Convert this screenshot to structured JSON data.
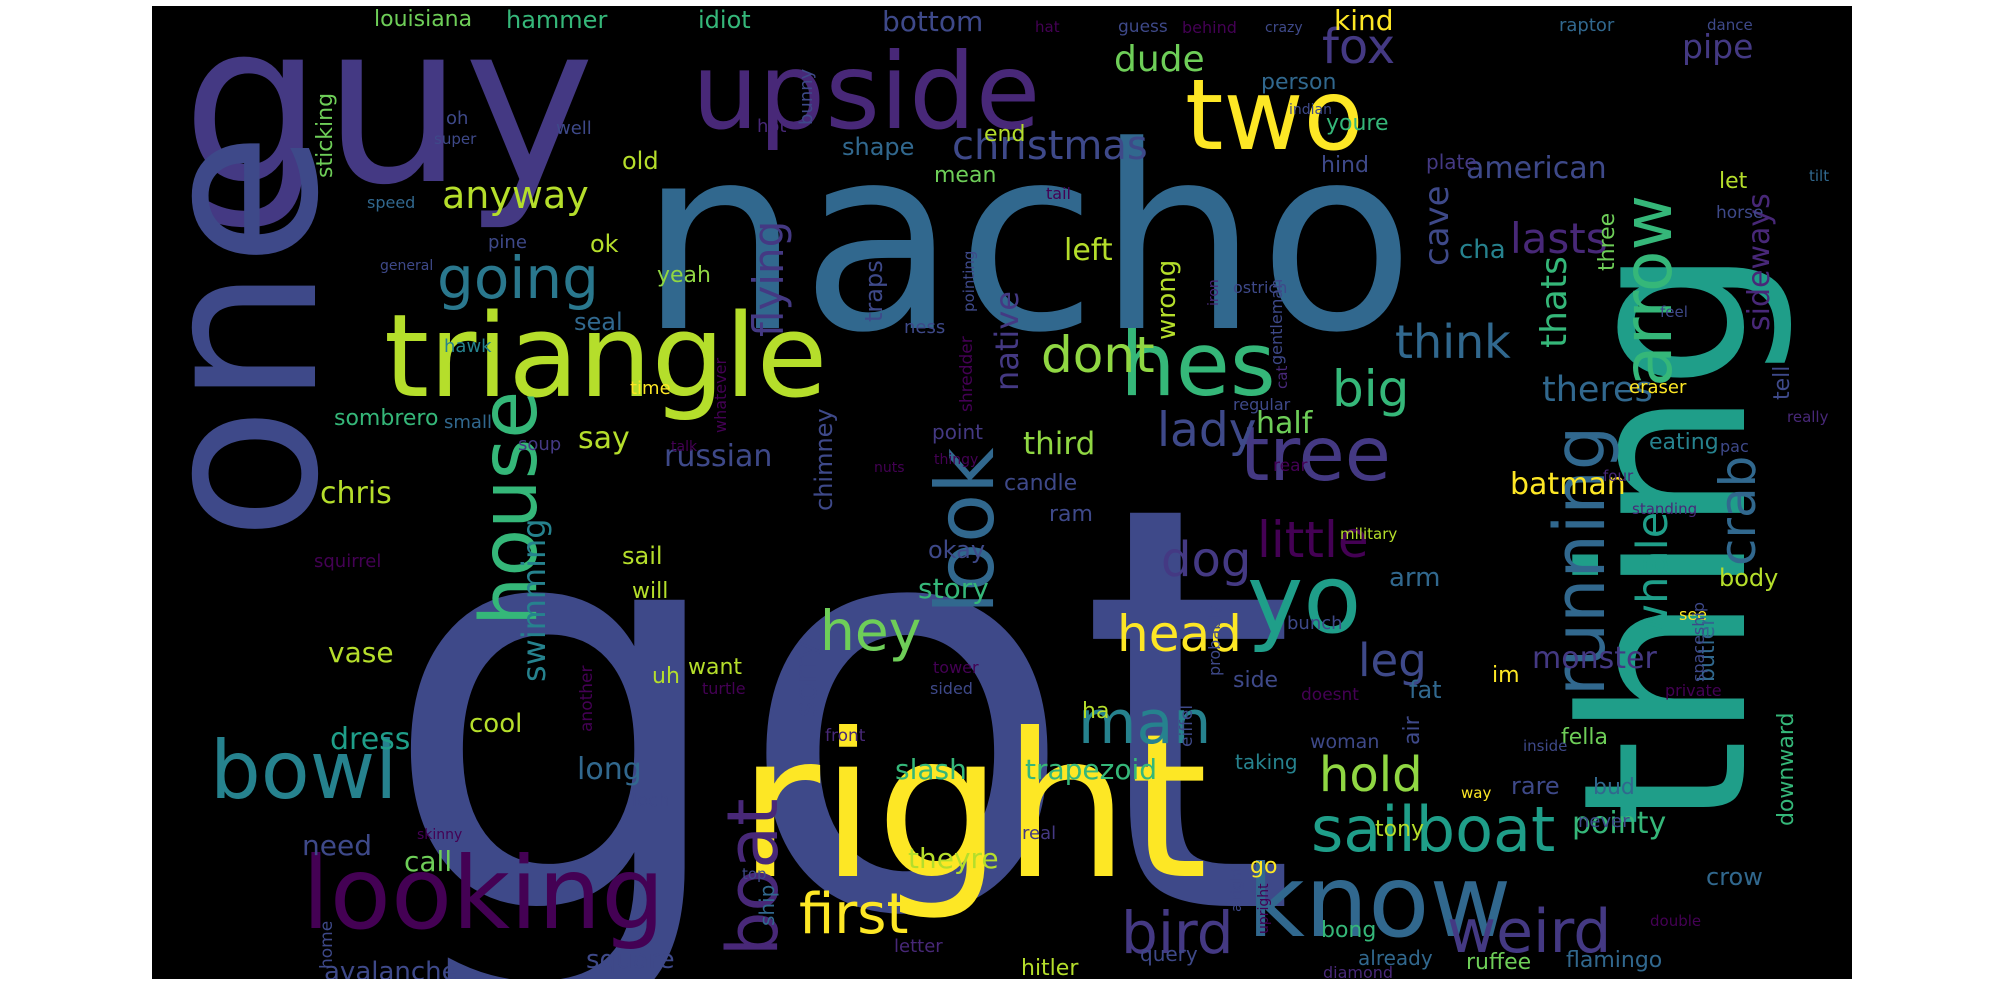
{
  "palette": {
    "background": "#000000",
    "page": "#ffffff",
    "yellow": "#fde725",
    "lime": "#b5de2b",
    "lightgreen": "#6ece58",
    "green": "#35b779",
    "teal": "#1f9e89",
    "cyan": "#26828e",
    "steel": "#31688e",
    "blue": "#3e4989",
    "indigo": "#482878",
    "purple": "#440154"
  },
  "words": [
    {
      "text": "got",
      "color": "#3e4989"
    },
    {
      "text": "thing",
      "color": "#1f9e89"
    },
    {
      "text": "nacho",
      "color": "#31688e"
    },
    {
      "text": "guy",
      "color": "#443983"
    },
    {
      "text": "one",
      "color": "#3e4989"
    },
    {
      "text": "right",
      "color": "#fde725"
    },
    {
      "text": "triangle",
      "color": "#b5de2b"
    },
    {
      "text": "upside",
      "color": "#482878"
    },
    {
      "text": "two",
      "color": "#fde725"
    },
    {
      "text": "running",
      "color": "#31688e"
    },
    {
      "text": "know",
      "color": "#31688e"
    },
    {
      "text": "looking",
      "color": "#440154"
    },
    {
      "text": "yo",
      "color": "#1f9e89"
    },
    {
      "text": "hes",
      "color": "#35b779"
    },
    {
      "text": "house",
      "color": "#35b779"
    },
    {
      "text": "bowl",
      "color": "#26828e"
    },
    {
      "text": "tree",
      "color": "#443983"
    },
    {
      "text": "look",
      "color": "#31688e"
    },
    {
      "text": "arrow",
      "color": "#35b779"
    },
    {
      "text": "sailboat",
      "color": "#1f9e89"
    },
    {
      "text": "boat",
      "color": "#482878"
    },
    {
      "text": "going",
      "color": "#2a788e"
    },
    {
      "text": "man",
      "color": "#26828e"
    },
    {
      "text": "first",
      "color": "#fde725"
    },
    {
      "text": "bird",
      "color": "#443983"
    },
    {
      "text": "weird",
      "color": "#443983"
    },
    {
      "text": "hey",
      "color": "#6ece58"
    },
    {
      "text": "head",
      "color": "#fde725"
    },
    {
      "text": "dont",
      "color": "#90d743"
    },
    {
      "text": "little",
      "color": "#440154"
    },
    {
      "text": "crab",
      "color": "#31688e"
    },
    {
      "text": "whale",
      "color": "#1f9e89"
    },
    {
      "text": "dog",
      "color": "#443983"
    },
    {
      "text": "lady",
      "color": "#3e4989"
    },
    {
      "text": "big",
      "color": "#35b779"
    },
    {
      "text": "think",
      "color": "#31688e"
    },
    {
      "text": "hold",
      "color": "#90d743"
    },
    {
      "text": "fox",
      "color": "#443983"
    },
    {
      "text": "christmas",
      "color": "#3e4989"
    },
    {
      "text": "anyway",
      "color": "#b5de2b"
    },
    {
      "text": "flying",
      "color": "#443983"
    },
    {
      "text": "swimming",
      "color": "#26828e"
    },
    {
      "text": "lasts",
      "color": "#482878"
    },
    {
      "text": "leg",
      "color": "#3e4989"
    },
    {
      "text": "dude",
      "color": "#6ece58"
    },
    {
      "text": "native",
      "color": "#443983"
    },
    {
      "text": "cave",
      "color": "#3e4989"
    },
    {
      "text": "thats",
      "color": "#35b779"
    },
    {
      "text": "sideways",
      "color": "#482878"
    },
    {
      "text": "pipe",
      "color": "#443983"
    },
    {
      "text": "theres",
      "color": "#31688e"
    },
    {
      "text": "pointy",
      "color": "#35b779"
    },
    {
      "text": "chris",
      "color": "#b5de2b"
    },
    {
      "text": "say",
      "color": "#b5de2b"
    },
    {
      "text": "russian",
      "color": "#3e4989"
    },
    {
      "text": "third",
      "color": "#90d743"
    },
    {
      "text": "left",
      "color": "#b5de2b"
    },
    {
      "text": "wrong",
      "color": "#b5de2b"
    },
    {
      "text": "half",
      "color": "#6ece58"
    },
    {
      "text": "american",
      "color": "#3e4989"
    },
    {
      "text": "batman",
      "color": "#fde725"
    },
    {
      "text": "monster",
      "color": "#443983"
    },
    {
      "text": "long",
      "color": "#31688e"
    },
    {
      "text": "dress",
      "color": "#1f9e89"
    },
    {
      "text": "sorry",
      "color": "#3e4989"
    },
    {
      "text": "story",
      "color": "#35b779"
    },
    {
      "text": "slash",
      "color": "#35b779"
    },
    {
      "text": "trapezoid",
      "color": "#35b779"
    },
    {
      "text": "theyre",
      "color": "#b5de2b"
    },
    {
      "text": "avalanche",
      "color": "#3e4989"
    },
    {
      "text": "call",
      "color": "#6ece58"
    },
    {
      "text": "need",
      "color": "#3e4989"
    },
    {
      "text": "vase",
      "color": "#b5de2b"
    },
    {
      "text": "cool",
      "color": "#b5de2b"
    },
    {
      "text": "square",
      "color": "#3e4989"
    },
    {
      "text": "bottom",
      "color": "#3e4989"
    },
    {
      "text": "kind",
      "color": "#fde725"
    },
    {
      "text": "hammer",
      "color": "#35b779"
    },
    {
      "text": "idiot",
      "color": "#35b779"
    },
    {
      "text": "louisiana",
      "color": "#6ece58"
    },
    {
      "text": "sticking",
      "color": "#6ece58"
    },
    {
      "text": "old",
      "color": "#b5de2b"
    },
    {
      "text": "ok",
      "color": "#b5de2b"
    },
    {
      "text": "yeah",
      "color": "#90d743"
    },
    {
      "text": "seal",
      "color": "#31688e"
    },
    {
      "text": "sombrero",
      "color": "#35b779"
    },
    {
      "text": "traps",
      "color": "#3e4989"
    },
    {
      "text": "chimney",
      "color": "#3e4989"
    },
    {
      "text": "okay",
      "color": "#3e4989"
    },
    {
      "text": "want",
      "color": "#b5de2b"
    },
    {
      "text": "uh",
      "color": "#b5de2b"
    },
    {
      "text": "ha",
      "color": "#b5de2b"
    },
    {
      "text": "sail",
      "color": "#b5de2b"
    },
    {
      "text": "will",
      "color": "#b5de2b"
    },
    {
      "text": "shape",
      "color": "#31688e"
    },
    {
      "text": "end",
      "color": "#b5de2b"
    },
    {
      "text": "mean",
      "color": "#6ece58"
    },
    {
      "text": "cha",
      "color": "#26828e"
    },
    {
      "text": "three",
      "color": "#6ece58"
    },
    {
      "text": "tell",
      "color": "#3e4989"
    },
    {
      "text": "let",
      "color": "#b5de2b"
    },
    {
      "text": "eating",
      "color": "#26828e"
    },
    {
      "text": "body",
      "color": "#b5de2b"
    },
    {
      "text": "butler",
      "color": "#31688e"
    },
    {
      "text": "arm",
      "color": "#31688e"
    },
    {
      "text": "im",
      "color": "#fde725"
    },
    {
      "text": "fat",
      "color": "#31688e"
    },
    {
      "text": "air",
      "color": "#3e4989"
    },
    {
      "text": "fella",
      "color": "#6ece58"
    },
    {
      "text": "rare",
      "color": "#3e4989"
    },
    {
      "text": "bud",
      "color": "#31688e"
    },
    {
      "text": "crow",
      "color": "#31688e"
    },
    {
      "text": "downward",
      "color": "#35b779"
    },
    {
      "text": "bong",
      "color": "#35b779"
    },
    {
      "text": "ruffee",
      "color": "#6ece58"
    },
    {
      "text": "flamingo",
      "color": "#31688e"
    },
    {
      "text": "tony",
      "color": "#b5de2b"
    },
    {
      "text": "go",
      "color": "#fde725"
    },
    {
      "text": "candle",
      "color": "#3e4989"
    },
    {
      "text": "ram",
      "color": "#3e4989"
    },
    {
      "text": "person",
      "color": "#31688e"
    },
    {
      "text": "youre",
      "color": "#35b779"
    },
    {
      "text": "hind",
      "color": "#3e4989"
    },
    {
      "text": "plate",
      "color": "#443983"
    },
    {
      "text": "hitler",
      "color": "#b5de2b"
    },
    {
      "text": "query",
      "color": "#3e4989"
    },
    {
      "text": "already",
      "color": "#31688e"
    },
    {
      "text": "side",
      "color": "#3e4989"
    },
    {
      "text": "woman",
      "color": "#3e4989"
    },
    {
      "text": "taking",
      "color": "#26828e"
    },
    {
      "text": "ship",
      "color": "#31688e"
    },
    {
      "text": "letter",
      "color": "#482878"
    },
    {
      "text": "diamond",
      "color": "#482878"
    },
    {
      "text": "small",
      "color": "#31688e"
    },
    {
      "text": "hawk",
      "color": "#26828e"
    },
    {
      "text": "soup",
      "color": "#443983"
    },
    {
      "text": "squirrel",
      "color": "#440154"
    },
    {
      "text": "well",
      "color": "#3e4989"
    },
    {
      "text": "hot",
      "color": "#482878"
    },
    {
      "text": "bunny",
      "color": "#3e4989"
    },
    {
      "text": "oh",
      "color": "#3e4989"
    },
    {
      "text": "super",
      "color": "#3e4989"
    },
    {
      "text": "speed",
      "color": "#31688e"
    },
    {
      "text": "pine",
      "color": "#3e4989"
    },
    {
      "text": "general",
      "color": "#3e4989"
    },
    {
      "text": "time",
      "color": "#fde725"
    },
    {
      "text": "talk",
      "color": "#440154"
    },
    {
      "text": "nuts",
      "color": "#440154"
    },
    {
      "text": "thingy",
      "color": "#440154"
    },
    {
      "text": "point",
      "color": "#443983"
    },
    {
      "text": "shredder",
      "color": "#440154"
    },
    {
      "text": "ness",
      "color": "#3e4989"
    },
    {
      "text": "whatever",
      "color": "#440154"
    },
    {
      "text": "pointing",
      "color": "#3e4989"
    },
    {
      "text": "tower",
      "color": "#440154"
    },
    {
      "text": "sided",
      "color": "#3e4989"
    },
    {
      "text": "turtle",
      "color": "#440154"
    },
    {
      "text": "front",
      "color": "#482878"
    },
    {
      "text": "another",
      "color": "#440154"
    },
    {
      "text": "loch",
      "color": "#3e4989"
    },
    {
      "text": "skinny",
      "color": "#440154"
    },
    {
      "text": "home",
      "color": "#3e4989"
    },
    {
      "text": "real",
      "color": "#443983"
    },
    {
      "text": "top",
      "color": "#3e4989"
    },
    {
      "text": "double",
      "color": "#440154"
    },
    {
      "text": "upright",
      "color": "#440154"
    },
    {
      "text": "alright",
      "color": "#3e4989"
    },
    {
      "text": "eiffel",
      "color": "#3e4989"
    },
    {
      "text": "probably",
      "color": "#3e4989"
    },
    {
      "text": "military",
      "color": "#b5de2b"
    },
    {
      "text": "bunch",
      "color": "#3e4989"
    },
    {
      "text": "doesnt",
      "color": "#440154"
    },
    {
      "text": "private",
      "color": "#440154"
    },
    {
      "text": "inside",
      "color": "#3e4989"
    },
    {
      "text": "way",
      "color": "#fde725"
    },
    {
      "text": "never",
      "color": "#3e4989"
    },
    {
      "text": "see",
      "color": "#fde725"
    },
    {
      "text": "spaceship",
      "color": "#3e4989"
    },
    {
      "text": "standing",
      "color": "#482878"
    },
    {
      "text": "four",
      "color": "#482878"
    },
    {
      "text": "rear",
      "color": "#440154"
    },
    {
      "text": "really",
      "color": "#482878"
    },
    {
      "text": "pac",
      "color": "#3e4989"
    },
    {
      "text": "eraser",
      "color": "#fde725"
    },
    {
      "text": "feel",
      "color": "#3e4989"
    },
    {
      "text": "cat",
      "color": "#482878"
    },
    {
      "text": "gentleman",
      "color": "#3e4989"
    },
    {
      "text": "ostrich",
      "color": "#3e4989"
    },
    {
      "text": "iron",
      "color": "#482878"
    },
    {
      "text": "regular",
      "color": "#3e4989"
    },
    {
      "text": "tail",
      "color": "#440154"
    },
    {
      "text": "indian",
      "color": "#3e4989"
    },
    {
      "text": "hat",
      "color": "#440154"
    },
    {
      "text": "guess",
      "color": "#3e4989"
    },
    {
      "text": "behind",
      "color": "#440154"
    },
    {
      "text": "crazy",
      "color": "#3e4989"
    },
    {
      "text": "raptor",
      "color": "#31688e"
    },
    {
      "text": "dance",
      "color": "#3e4989"
    },
    {
      "text": "tilt",
      "color": "#31688e"
    },
    {
      "text": "horse",
      "color": "#3e4989"
    }
  ]
}
